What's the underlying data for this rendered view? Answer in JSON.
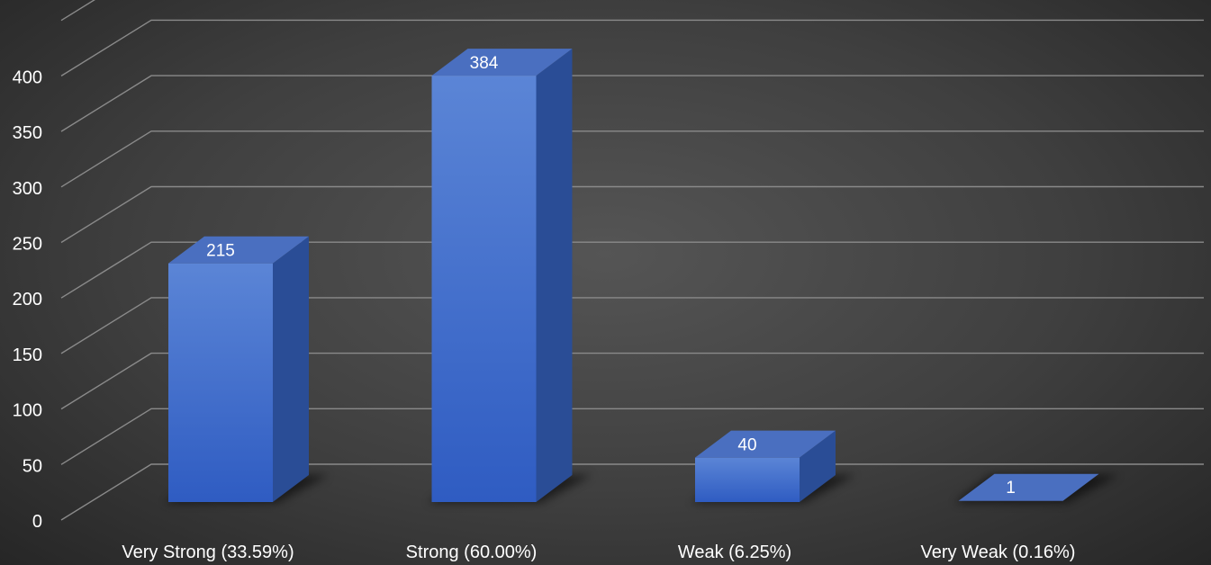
{
  "chart_data": {
    "type": "bar",
    "categories": [
      "Very Strong (33.59%)",
      "Strong (60.00%)",
      "Weak (6.25%)",
      "Very Weak (0.16%)"
    ],
    "values": [
      215,
      384,
      40,
      1
    ],
    "data_labels": [
      "215",
      "384",
      "40",
      "1"
    ],
    "yticks": [
      0,
      50,
      100,
      150,
      200,
      250,
      300,
      350,
      400
    ],
    "ylim": [
      0,
      450
    ],
    "grid": true,
    "legend": "none",
    "colors": {
      "bar_top": "#5b85d6",
      "bar_bottom": "#2f5cc2",
      "bar_side": "#2a4d96",
      "bar_cap": "#4a6fc0",
      "grid": "#8a8a8a",
      "text": "#ffffff"
    }
  }
}
